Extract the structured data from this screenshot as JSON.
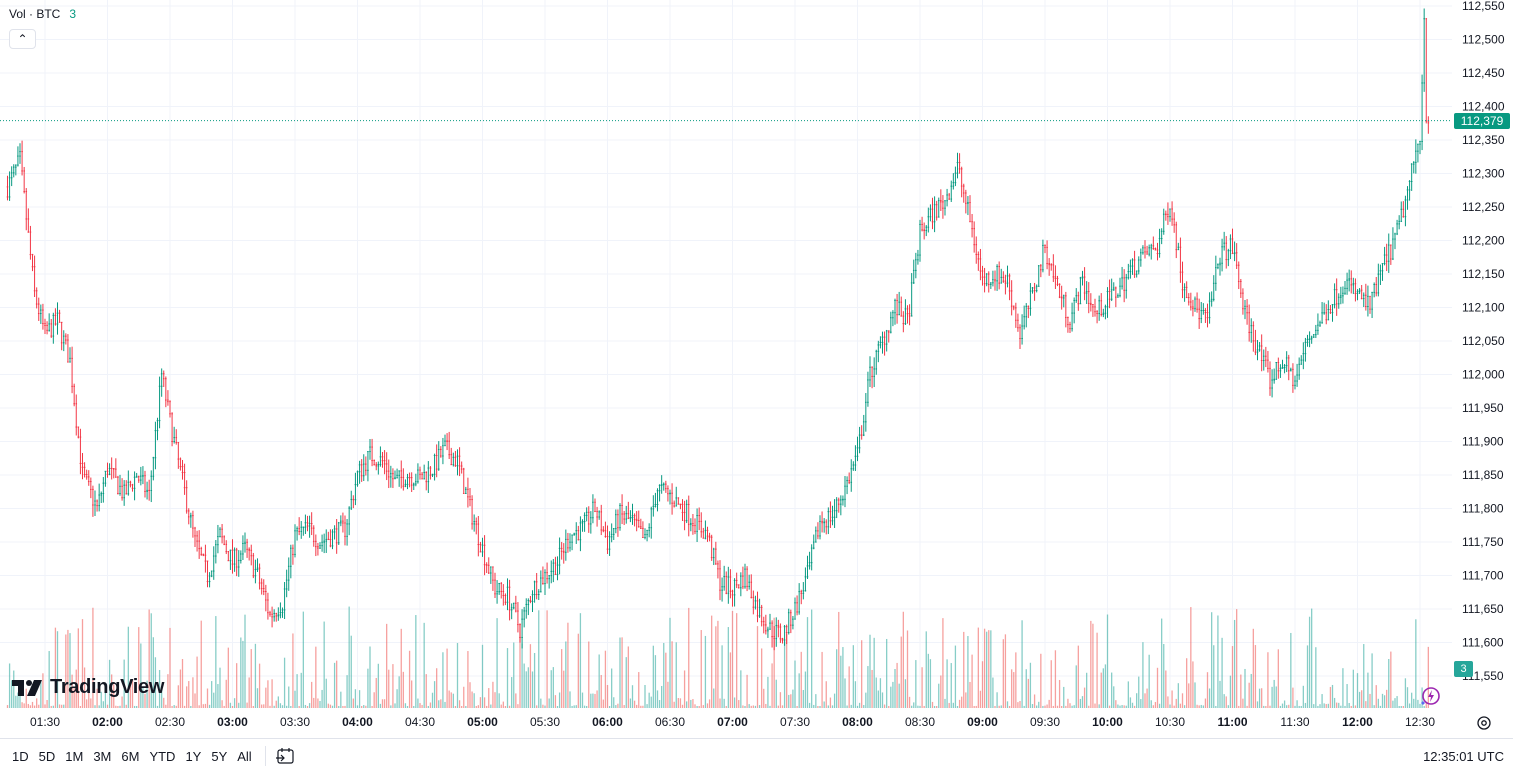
{
  "legend": {
    "title": "Vol · BTC",
    "count": "3"
  },
  "logo": {
    "text": "TradingView",
    "icon": "tradingview-logo-icon"
  },
  "price_label": "112,379",
  "volume_label": "3",
  "colors": {
    "up": "#089981",
    "down": "#f23645",
    "vol_up": "#26a69a",
    "vol_down": "#ef5350",
    "grid": "#f0f3fa",
    "text": "#131722"
  },
  "bottom_bar": {
    "ranges": [
      "1D",
      "5D",
      "1M",
      "3M",
      "6M",
      "YTD",
      "1Y",
      "5Y",
      "All"
    ],
    "clock": "12:35:01 UTC"
  },
  "chart_data": {
    "type": "candlestick",
    "symbol": "BTC",
    "yticks": [
      112550,
      112500,
      112450,
      112400,
      112350,
      112300,
      112250,
      112200,
      112150,
      112100,
      112050,
      112000,
      111950,
      111900,
      111850,
      111800,
      111750,
      111700,
      111650,
      111600,
      111550
    ],
    "ytick_labels": [
      "112,550",
      "112,500",
      "112,450",
      "112,400",
      "112,350",
      "112,300",
      "112,250",
      "112,200",
      "112,150",
      "112,100",
      "112,050",
      "112,000",
      "111,950",
      "111,900",
      "111,850",
      "111,800",
      "111,750",
      "111,700",
      "111,650",
      "111,600",
      "111,550"
    ],
    "xticks": [
      "01:30",
      "02:00",
      "02:30",
      "03:00",
      "03:30",
      "04:00",
      "04:30",
      "05:00",
      "05:30",
      "06:00",
      "06:30",
      "07:00",
      "07:30",
      "08:00",
      "08:30",
      "09:00",
      "09:30",
      "10:00",
      "10:30",
      "11:00",
      "11:30",
      "12:00",
      "12:30"
    ],
    "xtick_bold": [
      "02:00",
      "03:00",
      "04:00",
      "05:00",
      "06:00",
      "07:00",
      "08:00",
      "09:00",
      "10:00",
      "11:00",
      "12:00"
    ],
    "last_price": 112379,
    "path_points": [
      [
        "01:12",
        112280
      ],
      [
        "01:18",
        112320
      ],
      [
        "01:25",
        112120
      ],
      [
        "01:30",
        112060
      ],
      [
        "01:36",
        112080
      ],
      [
        "01:42",
        112020
      ],
      [
        "01:48",
        111850
      ],
      [
        "01:55",
        111800
      ],
      [
        "02:00",
        111860
      ],
      [
        "02:08",
        111820
      ],
      [
        "02:14",
        111850
      ],
      [
        "02:20",
        111820
      ],
      [
        "02:26",
        112000
      ],
      [
        "02:30",
        111930
      ],
      [
        "02:36",
        111840
      ],
      [
        "02:42",
        111750
      ],
      [
        "02:48",
        111700
      ],
      [
        "02:54",
        111760
      ],
      [
        "03:00",
        111720
      ],
      [
        "03:06",
        111740
      ],
      [
        "03:12",
        111700
      ],
      [
        "03:18",
        111640
      ],
      [
        "03:24",
        111660
      ],
      [
        "03:30",
        111760
      ],
      [
        "03:36",
        111770
      ],
      [
        "03:42",
        111750
      ],
      [
        "03:48",
        111760
      ],
      [
        "03:54",
        111770
      ],
      [
        "04:00",
        111850
      ],
      [
        "04:06",
        111880
      ],
      [
        "04:12",
        111870
      ],
      [
        "04:18",
        111840
      ],
      [
        "04:24",
        111850
      ],
      [
        "04:30",
        111845
      ],
      [
        "04:36",
        111860
      ],
      [
        "04:42",
        111890
      ],
      [
        "04:48",
        111870
      ],
      [
        "04:54",
        111800
      ],
      [
        "05:00",
        111740
      ],
      [
        "05:06",
        111680
      ],
      [
        "05:12",
        111670
      ],
      [
        "05:18",
        111620
      ],
      [
        "05:24",
        111680
      ],
      [
        "05:30",
        111700
      ],
      [
        "05:36",
        111720
      ],
      [
        "05:42",
        111760
      ],
      [
        "05:48",
        111770
      ],
      [
        "05:54",
        111800
      ],
      [
        "06:00",
        111750
      ],
      [
        "06:06",
        111790
      ],
      [
        "06:12",
        111780
      ],
      [
        "06:18",
        111750
      ],
      [
        "06:24",
        111830
      ],
      [
        "06:30",
        111820
      ],
      [
        "06:36",
        111800
      ],
      [
        "06:42",
        111780
      ],
      [
        "06:48",
        111760
      ],
      [
        "06:54",
        111690
      ],
      [
        "07:00",
        111680
      ],
      [
        "07:06",
        111700
      ],
      [
        "07:12",
        111650
      ],
      [
        "07:18",
        111620
      ],
      [
        "07:24",
        111610
      ],
      [
        "07:30",
        111650
      ],
      [
        "07:36",
        111700
      ],
      [
        "07:42",
        111780
      ],
      [
        "07:48",
        111790
      ],
      [
        "07:54",
        111830
      ],
      [
        "08:00",
        111880
      ],
      [
        "08:06",
        112000
      ],
      [
        "08:12",
        112050
      ],
      [
        "08:18",
        112100
      ],
      [
        "08:24",
        112080
      ],
      [
        "08:30",
        112210
      ],
      [
        "08:36",
        112240
      ],
      [
        "08:42",
        112260
      ],
      [
        "08:48",
        112310
      ],
      [
        "08:54",
        112230
      ],
      [
        "09:00",
        112140
      ],
      [
        "09:06",
        112150
      ],
      [
        "09:12",
        112140
      ],
      [
        "09:18",
        112060
      ],
      [
        "09:24",
        112120
      ],
      [
        "09:30",
        112190
      ],
      [
        "09:36",
        112130
      ],
      [
        "09:42",
        112080
      ],
      [
        "09:48",
        112140
      ],
      [
        "09:54",
        112090
      ],
      [
        "10:00",
        112110
      ],
      [
        "10:06",
        112130
      ],
      [
        "10:12",
        112160
      ],
      [
        "10:18",
        112180
      ],
      [
        "10:24",
        112190
      ],
      [
        "10:30",
        112260
      ],
      [
        "10:36",
        112140
      ],
      [
        "10:42",
        112100
      ],
      [
        "10:48",
        112080
      ],
      [
        "10:54",
        112180
      ],
      [
        "11:00",
        112190
      ],
      [
        "11:06",
        112090
      ],
      [
        "11:12",
        112040
      ],
      [
        "11:18",
        111990
      ],
      [
        "11:24",
        112020
      ],
      [
        "11:30",
        111990
      ],
      [
        "11:36",
        112050
      ],
      [
        "11:42",
        112080
      ],
      [
        "11:48",
        112110
      ],
      [
        "11:54",
        112140
      ],
      [
        "12:00",
        112120
      ],
      [
        "12:06",
        112100
      ],
      [
        "12:12",
        112160
      ],
      [
        "12:18",
        112200
      ],
      [
        "12:24",
        112270
      ],
      [
        "12:30",
        112360
      ],
      [
        "12:32",
        112530
      ],
      [
        "12:33",
        112390
      ],
      [
        "12:35",
        112379
      ]
    ]
  }
}
